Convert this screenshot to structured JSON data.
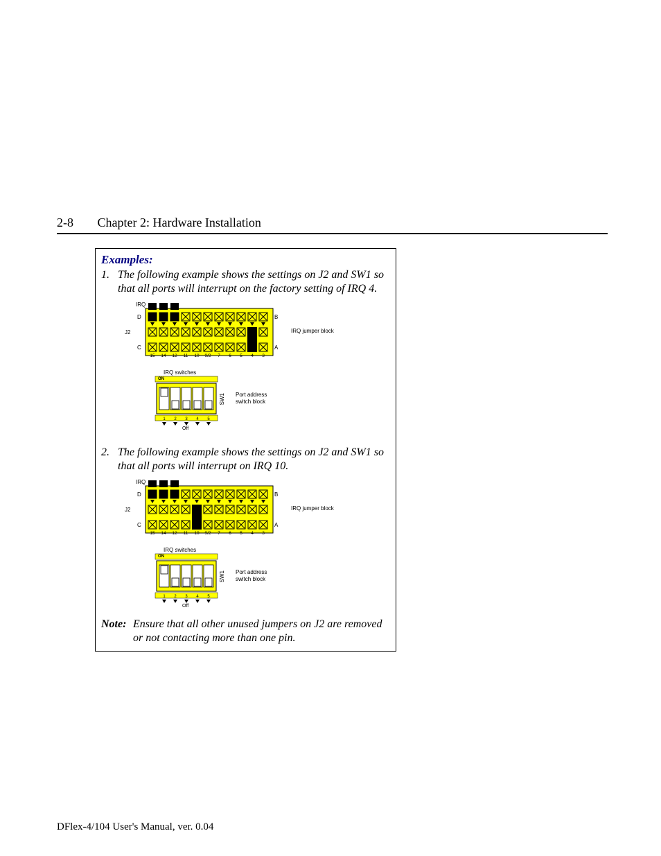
{
  "header": {
    "page_num": "2-8",
    "chapter": "Chapter 2: Hardware Installation"
  },
  "box": {
    "title": "Examples:",
    "ex1_num": "1.",
    "ex1_text": "The following example shows the settings on J2 and SW1 so that all ports will interrupt on the factory setting of IRQ 4.",
    "ex2_num": "2.",
    "ex2_text": "The following example shows the settings on J2 and SW1 so that all ports will interrupt on IRQ 10.",
    "note_label": "Note:",
    "note_text": "Ensure that all other unused jumpers on J2 are removed or not contacting more than one pin."
  },
  "jumper": {
    "irq_label": "IRQ",
    "rows": {
      "D": "D",
      "B": "B",
      "J2": "J2",
      "C": "C",
      "A": "A"
    },
    "numbers": [
      "15",
      "14",
      "12",
      "11",
      "10",
      "9/2",
      "7",
      "6",
      "5",
      "4",
      "3"
    ],
    "side_label": "IRQ jumper block",
    "pin_on_color": "#000000",
    "pin_off_stroke": "#000000",
    "board_fill": "#ffff00",
    "board_stroke": "#000000",
    "top_pins_ex1": [
      0,
      1,
      2
    ],
    "mid_jumper_col_ex1": 9,
    "top_pins_ex2": [
      0,
      1,
      2
    ],
    "mid_jumper_col_ex2": 4
  },
  "switch": {
    "title": "IRQ switches",
    "on_label": "ON",
    "off_label": "Off",
    "sw1_label": "SW1",
    "side_line1": "Port address",
    "side_line2": "switch block",
    "numbers": [
      "1",
      "2",
      "3",
      "4",
      "5"
    ],
    "positions_ex1": [
      "up",
      "down",
      "down",
      "down",
      "down"
    ],
    "positions_ex2": [
      "up",
      "down",
      "down",
      "down",
      "down"
    ],
    "body_fill": "#ffff00",
    "body_stroke": "#000000",
    "sw_fill": "#ffffff",
    "sw_stroke": "#000000",
    "arrow_color": "#000000",
    "highlight_fill": "#ffff00"
  },
  "footer": "DFlex-4/104 User's Manual, ver. 0.04"
}
